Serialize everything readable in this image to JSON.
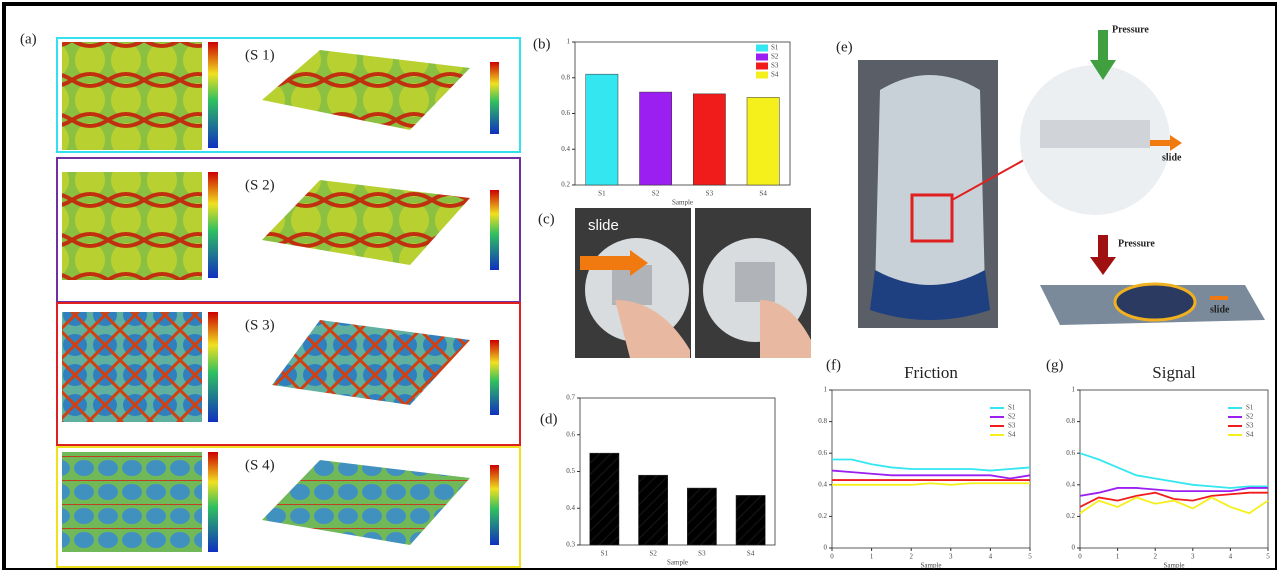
{
  "panel_labels": {
    "a": "(a)",
    "b": "(b)",
    "c": "(c)",
    "d": "(d)",
    "e": "(e)",
    "f": "(f)",
    "g": "(g)"
  },
  "surface_labels": [
    "(S 1)",
    "(S 2)",
    "(S 3)",
    "(S 4)"
  ],
  "photo_c": {
    "arrow_label": "slide"
  },
  "panel_e": {
    "pressure_top": "Pressure",
    "slide_top": "slide",
    "pressure_bottom": "Pressure",
    "slide_bottom": "slide"
  },
  "chart_data": [
    {
      "type": "bar",
      "xlabel": "Sample",
      "categories": [
        "S1",
        "S2",
        "S3",
        "S4"
      ],
      "values": [
        0.82,
        0.72,
        0.71,
        0.69
      ],
      "colors": [
        "#33e6f0",
        "#9b1ff0",
        "#f01c1c",
        "#f5f01c"
      ],
      "ylim": [
        0.2,
        1.0
      ],
      "yticks": [
        0.2,
        0.4,
        0.6,
        0.8,
        1.0
      ],
      "legend": "upper right",
      "hatch": false
    },
    {
      "type": "bar",
      "xlabel": "Sample",
      "categories": [
        "S1",
        "S2",
        "S3",
        "S4"
      ],
      "values": [
        0.55,
        0.49,
        0.455,
        0.435
      ],
      "color": "#e02020",
      "ylim": [
        0.3,
        0.7
      ],
      "yticks": [
        0.3,
        0.4,
        0.5,
        0.6,
        0.7
      ],
      "hatch": true
    },
    {
      "type": "line",
      "title": "Friction",
      "xlabel": "Sample",
      "x": [
        0,
        0.5,
        1,
        1.5,
        2,
        2.5,
        3,
        3.5,
        4,
        4.5,
        5
      ],
      "xlim": [
        0,
        5
      ],
      "xticks": [
        0,
        1,
        2,
        3,
        4,
        5
      ],
      "ylim": [
        0,
        1
      ],
      "yticks": [
        0,
        0.2,
        0.4,
        0.6,
        0.8,
        1
      ],
      "legend": "upper right",
      "series": [
        {
          "name": "S1",
          "color": "#33e6f0",
          "values": [
            0.56,
            0.56,
            0.53,
            0.51,
            0.5,
            0.5,
            0.5,
            0.5,
            0.49,
            0.5,
            0.51
          ]
        },
        {
          "name": "S2",
          "color": "#9b1ff0",
          "values": [
            0.49,
            0.48,
            0.47,
            0.46,
            0.46,
            0.46,
            0.46,
            0.46,
            0.46,
            0.44,
            0.46
          ]
        },
        {
          "name": "S3",
          "color": "#f01c1c",
          "values": [
            0.43,
            0.43,
            0.43,
            0.43,
            0.43,
            0.43,
            0.43,
            0.43,
            0.43,
            0.43,
            0.43
          ]
        },
        {
          "name": "S4",
          "color": "#f5f01c",
          "values": [
            0.4,
            0.4,
            0.4,
            0.4,
            0.4,
            0.41,
            0.4,
            0.41,
            0.41,
            0.41,
            0.41
          ]
        }
      ]
    },
    {
      "type": "line",
      "title": "Signal",
      "xlabel": "Sample",
      "x": [
        0,
        0.5,
        1,
        1.5,
        2,
        2.5,
        3,
        3.5,
        4,
        4.5,
        5
      ],
      "xlim": [
        0,
        5
      ],
      "xticks": [
        0,
        1,
        2,
        3,
        4,
        5
      ],
      "ylim": [
        0,
        1
      ],
      "yticks": [
        0,
        0.2,
        0.4,
        0.6,
        0.8,
        1
      ],
      "legend": "upper right",
      "series": [
        {
          "name": "S1",
          "color": "#33e6f0",
          "values": [
            0.6,
            0.56,
            0.51,
            0.46,
            0.44,
            0.42,
            0.4,
            0.39,
            0.38,
            0.39,
            0.39
          ]
        },
        {
          "name": "S2",
          "color": "#9b1ff0",
          "values": [
            0.33,
            0.35,
            0.38,
            0.38,
            0.37,
            0.36,
            0.36,
            0.36,
            0.36,
            0.38,
            0.38
          ]
        },
        {
          "name": "S3",
          "color": "#f01c1c",
          "values": [
            0.26,
            0.32,
            0.3,
            0.33,
            0.35,
            0.31,
            0.3,
            0.33,
            0.34,
            0.35,
            0.35
          ]
        },
        {
          "name": "S4",
          "color": "#f5f01c",
          "values": [
            0.22,
            0.3,
            0.26,
            0.32,
            0.28,
            0.3,
            0.25,
            0.32,
            0.26,
            0.22,
            0.3
          ]
        }
      ]
    }
  ]
}
